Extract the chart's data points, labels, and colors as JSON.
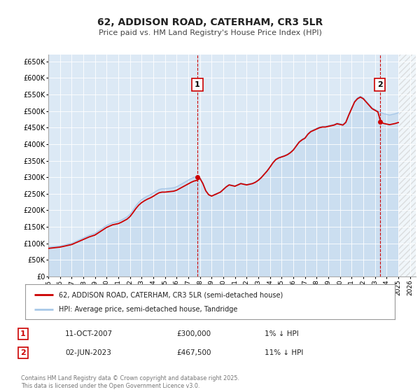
{
  "title": "62, ADDISON ROAD, CATERHAM, CR3 5LR",
  "subtitle": "Price paid vs. HM Land Registry's House Price Index (HPI)",
  "bg_color": "#ffffff",
  "plot_bg_color": "#dce9f5",
  "grid_color": "#ffffff",
  "hpi_line_color": "#a8c8e8",
  "price_line_color": "#cc0000",
  "ylim": [
    0,
    670000
  ],
  "xlim_start": 1995.0,
  "xlim_end": 2026.5,
  "yticks": [
    0,
    50000,
    100000,
    150000,
    200000,
    250000,
    300000,
    350000,
    400000,
    450000,
    500000,
    550000,
    600000,
    650000
  ],
  "ytick_labels": [
    "£0",
    "£50K",
    "£100K",
    "£150K",
    "£200K",
    "£250K",
    "£300K",
    "£350K",
    "£400K",
    "£450K",
    "£500K",
    "£550K",
    "£600K",
    "£650K"
  ],
  "xticks": [
    1995,
    1996,
    1997,
    1998,
    1999,
    2000,
    2001,
    2002,
    2003,
    2004,
    2005,
    2006,
    2007,
    2008,
    2009,
    2010,
    2011,
    2012,
    2013,
    2014,
    2015,
    2016,
    2017,
    2018,
    2019,
    2020,
    2021,
    2022,
    2023,
    2024,
    2025,
    2026
  ],
  "marker1_x": 2007.78,
  "marker1_y": 300000,
  "marker1_label": "1",
  "marker2_x": 2023.42,
  "marker2_y": 467500,
  "marker2_label": "2",
  "annotation1_date": "11-OCT-2007",
  "annotation1_price": "£300,000",
  "annotation1_hpi": "1% ↓ HPI",
  "annotation2_date": "02-JUN-2023",
  "annotation2_price": "£467,500",
  "annotation2_hpi": "11% ↓ HPI",
  "legend_line1": "62, ADDISON ROAD, CATERHAM, CR3 5LR (semi-detached house)",
  "legend_line2": "HPI: Average price, semi-detached house, Tandridge",
  "copyright_text": "Contains HM Land Registry data © Crown copyright and database right 2025.\nThis data is licensed under the Open Government Licence v3.0.",
  "hpi_data_x": [
    1995.0,
    1995.25,
    1995.5,
    1995.75,
    1996.0,
    1996.25,
    1996.5,
    1996.75,
    1997.0,
    1997.25,
    1997.5,
    1997.75,
    1998.0,
    1998.25,
    1998.5,
    1998.75,
    1999.0,
    1999.25,
    1999.5,
    1999.75,
    2000.0,
    2000.25,
    2000.5,
    2000.75,
    2001.0,
    2001.25,
    2001.5,
    2001.75,
    2002.0,
    2002.25,
    2002.5,
    2002.75,
    2003.0,
    2003.25,
    2003.5,
    2003.75,
    2004.0,
    2004.25,
    2004.5,
    2004.75,
    2005.0,
    2005.25,
    2005.5,
    2005.75,
    2006.0,
    2006.25,
    2006.5,
    2006.75,
    2007.0,
    2007.25,
    2007.5,
    2007.75,
    2008.0,
    2008.25,
    2008.5,
    2008.75,
    2009.0,
    2009.25,
    2009.5,
    2009.75,
    2010.0,
    2010.25,
    2010.5,
    2010.75,
    2011.0,
    2011.25,
    2011.5,
    2011.75,
    2012.0,
    2012.25,
    2012.5,
    2012.75,
    2013.0,
    2013.25,
    2013.5,
    2013.75,
    2014.0,
    2014.25,
    2014.5,
    2014.75,
    2015.0,
    2015.25,
    2015.5,
    2015.75,
    2016.0,
    2016.25,
    2016.5,
    2016.75,
    2017.0,
    2017.25,
    2017.5,
    2017.75,
    2018.0,
    2018.25,
    2018.5,
    2018.75,
    2019.0,
    2019.25,
    2019.5,
    2019.75,
    2020.0,
    2020.25,
    2020.5,
    2020.75,
    2021.0,
    2021.25,
    2021.5,
    2021.75,
    2022.0,
    2022.25,
    2022.5,
    2022.75,
    2023.0,
    2023.25,
    2023.5,
    2023.75,
    2024.0,
    2024.25,
    2024.5,
    2024.75,
    2025.0
  ],
  "hpi_data_y": [
    88000,
    89000,
    90000,
    91000,
    92000,
    94000,
    96000,
    98000,
    100000,
    104000,
    108000,
    112000,
    116000,
    120000,
    124000,
    127000,
    130000,
    136000,
    142000,
    148000,
    154000,
    158000,
    162000,
    164000,
    166000,
    170000,
    175000,
    180000,
    188000,
    200000,
    213000,
    224000,
    232000,
    238000,
    243000,
    247000,
    252000,
    258000,
    263000,
    265000,
    265000,
    266000,
    267000,
    268000,
    271000,
    276000,
    281000,
    286000,
    291000,
    296000,
    300000,
    302000,
    298000,
    282000,
    260000,
    248000,
    244000,
    248000,
    252000,
    256000,
    264000,
    272000,
    278000,
    276000,
    274000,
    278000,
    282000,
    280000,
    278000,
    280000,
    282000,
    286000,
    292000,
    300000,
    310000,
    320000,
    332000,
    345000,
    355000,
    360000,
    363000,
    366000,
    370000,
    376000,
    384000,
    396000,
    408000,
    415000,
    420000,
    432000,
    440000,
    444000,
    448000,
    452000,
    454000,
    454000,
    456000,
    458000,
    460000,
    464000,
    462000,
    460000,
    468000,
    490000,
    510000,
    530000,
    540000,
    545000,
    540000,
    530000,
    520000,
    510000,
    505000,
    500000,
    496000,
    492000,
    490000,
    488000,
    490000,
    492000,
    495000
  ],
  "price_paid_data": [
    [
      1995.75,
      87500
    ],
    [
      2007.78,
      300000
    ],
    [
      2023.42,
      467500
    ]
  ]
}
